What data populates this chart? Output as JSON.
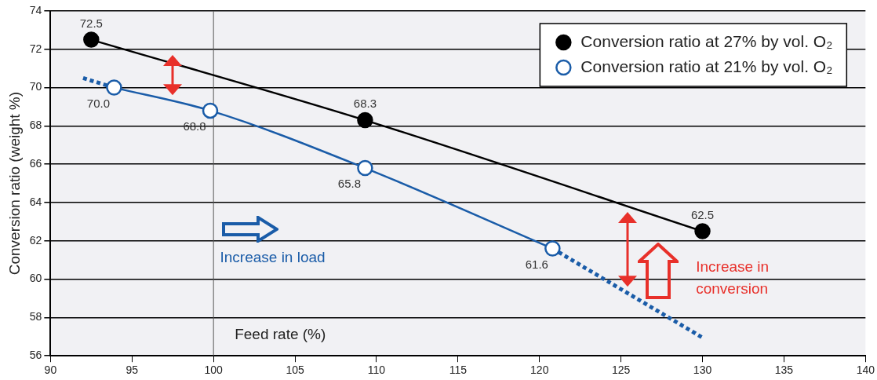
{
  "chart_data": {
    "type": "line",
    "xlabel": "Feed rate (%)",
    "ylabel": "Conversion ratio (weight %)",
    "xlim": [
      90,
      140
    ],
    "xticks": [
      90,
      95,
      100,
      105,
      110,
      115,
      120,
      125,
      130,
      135,
      140
    ],
    "ylim": [
      56,
      74
    ],
    "yticks": [
      56,
      58,
      60,
      62,
      64,
      66,
      68,
      70,
      72,
      74
    ],
    "grid": "y",
    "legend": "top right",
    "marker": "circle",
    "series": [
      {
        "name": "Conversion ratio at 27% by vol. O₂",
        "color": "#000000",
        "x": [
          92.5,
          109.3,
          130
        ],
        "values": [
          72.5,
          68.3,
          62.5
        ],
        "value_labels": [
          "72.5",
          "68.3",
          "62.5"
        ]
      },
      {
        "name": "Conversion ratio at 21% by vol. O₂",
        "color": "#1a5ca8",
        "x": [
          93.9,
          99.8,
          109.3,
          120.8
        ],
        "values": [
          70.0,
          68.8,
          65.8,
          61.6
        ],
        "value_labels": [
          "70.0",
          "68.8",
          "65.8",
          "61.6"
        ]
      },
      {
        "color": "#1a5ca8",
        "x": [
          92.0,
          93.9
        ],
        "values": [
          70.5,
          70.0
        ],
        "marker": "none",
        "line_style": "dotted"
      },
      {
        "color": "#1a5ca8",
        "x": [
          120.8,
          130.1
        ],
        "values": [
          61.6,
          56.9
        ],
        "marker": "none",
        "line_style": "dotted"
      }
    ],
    "ref_lines": [
      {
        "axis": "x",
        "value": 100,
        "color": "#555555"
      }
    ],
    "annotations": [
      "Increase in load",
      "Increase in conversion"
    ]
  }
}
